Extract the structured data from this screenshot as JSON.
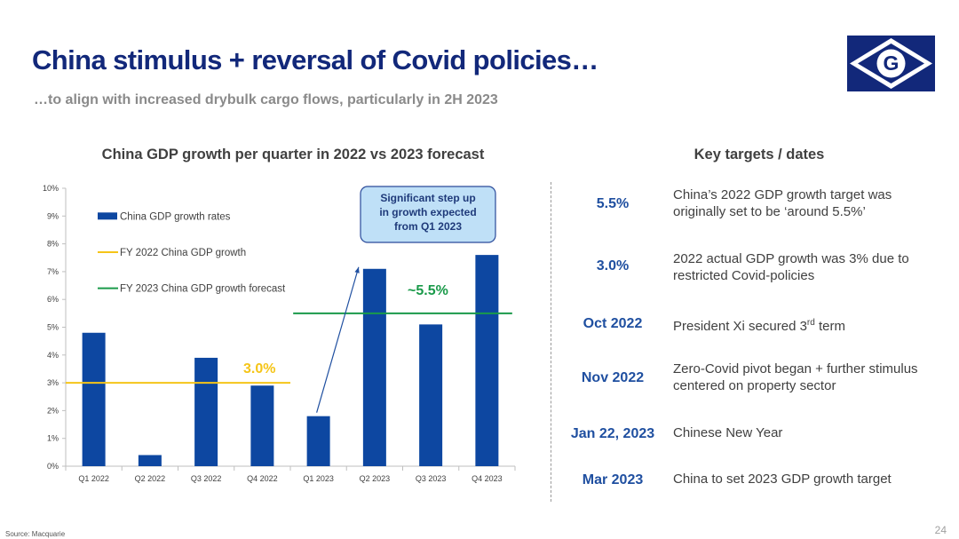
{
  "slide": {
    "title": "China stimulus + reversal of Covid policies…",
    "subtitle": "…to align with increased drybulk cargo flows, particularly in 2H 2023",
    "source": "Source: Macquarie",
    "page_number": "24",
    "logo_letter": "G"
  },
  "colors": {
    "title": "#12287a",
    "bar": "#0d47a1",
    "fy2022_line": "#f5c518",
    "fy2023_line": "#1a9a4a",
    "accent_blue": "#1f4fa0",
    "callout_fill": "#bfe0f7",
    "callout_border": "#2a4a9a"
  },
  "chart_data": {
    "type": "bar",
    "title": "China GDP growth per quarter in 2022 vs 2023 forecast",
    "categories": [
      "Q1 2022",
      "Q2 2022",
      "Q3 2022",
      "Q4 2022",
      "Q1 2023",
      "Q2 2023",
      "Q3 2023",
      "Q4 2023"
    ],
    "series": [
      {
        "name": "China GDP growth rates",
        "values": [
          4.8,
          0.4,
          3.9,
          2.9,
          1.8,
          7.1,
          5.1,
          7.6
        ]
      }
    ],
    "reference_lines": [
      {
        "name": "FY 2022 China GDP growth",
        "value": 3.0,
        "from": "Q1 2022",
        "to": "Q4 2022",
        "label": "3.0%"
      },
      {
        "name": "FY 2023 China GDP growth forecast",
        "value": 5.5,
        "from": "Q1 2023",
        "to": "Q4 2023",
        "label": "~5.5%"
      }
    ],
    "yticks": [
      "0%",
      "1%",
      "2%",
      "3%",
      "4%",
      "5%",
      "6%",
      "7%",
      "8%",
      "9%",
      "10%"
    ],
    "ylim": [
      0,
      10
    ],
    "legend_placement": "top-left",
    "annotation": "Significant step up in growth expected from Q1 2023"
  },
  "key_targets": {
    "title": "Key targets / dates",
    "items": [
      {
        "key": "5.5%",
        "text": "China’s 2022 GDP growth target was originally set to be ‘around 5.5%’"
      },
      {
        "key": "3.0%",
        "text": "2022 actual GDP growth was 3% due to restricted Covid-policies"
      },
      {
        "key": "Oct 2022",
        "text_before": "President Xi secured 3",
        "sup": "rd",
        "text_after": " term"
      },
      {
        "key": "Nov 2022",
        "text": "Zero-Covid pivot began + further stimulus centered on property sector"
      },
      {
        "key": "Jan 22, 2023",
        "text": "Chinese New Year"
      },
      {
        "key": "Mar 2023",
        "text": "China to set 2023 GDP growth target"
      }
    ]
  }
}
